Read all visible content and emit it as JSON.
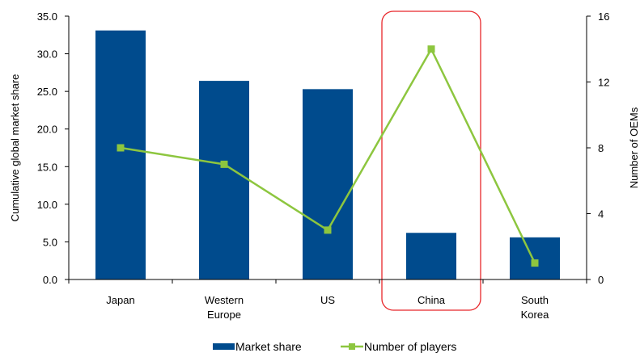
{
  "chart_data": {
    "type": "bar",
    "categories": [
      [
        "Japan"
      ],
      [
        "Western",
        "Europe"
      ],
      [
        "US"
      ],
      [
        "China"
      ],
      [
        "South",
        "Korea"
      ]
    ],
    "series": [
      {
        "name": "Market share",
        "type": "bar",
        "axis": "left",
        "color": "#004b8d",
        "values": [
          33.1,
          26.4,
          25.3,
          6.2,
          5.6
        ]
      },
      {
        "name": "Number of players",
        "type": "line",
        "axis": "right",
        "color": "#8dc63f",
        "values": [
          8,
          7,
          3,
          14,
          1
        ]
      }
    ],
    "ylabel": "Cumulative global market share",
    "y2label": "Number of OEMs",
    "ylim": [
      0,
      35
    ],
    "y2lim": [
      0,
      16
    ],
    "yticks": [
      "35.0",
      "30.0",
      "25.0",
      "20.0",
      "15.0",
      "10.0",
      "5.0",
      "0.0"
    ],
    "y2ticks": [
      "16",
      "12",
      "8",
      "4",
      "0"
    ],
    "highlight": {
      "category_index": 3,
      "color": "#e8262a"
    },
    "legend_position": "bottom",
    "grid": false
  }
}
